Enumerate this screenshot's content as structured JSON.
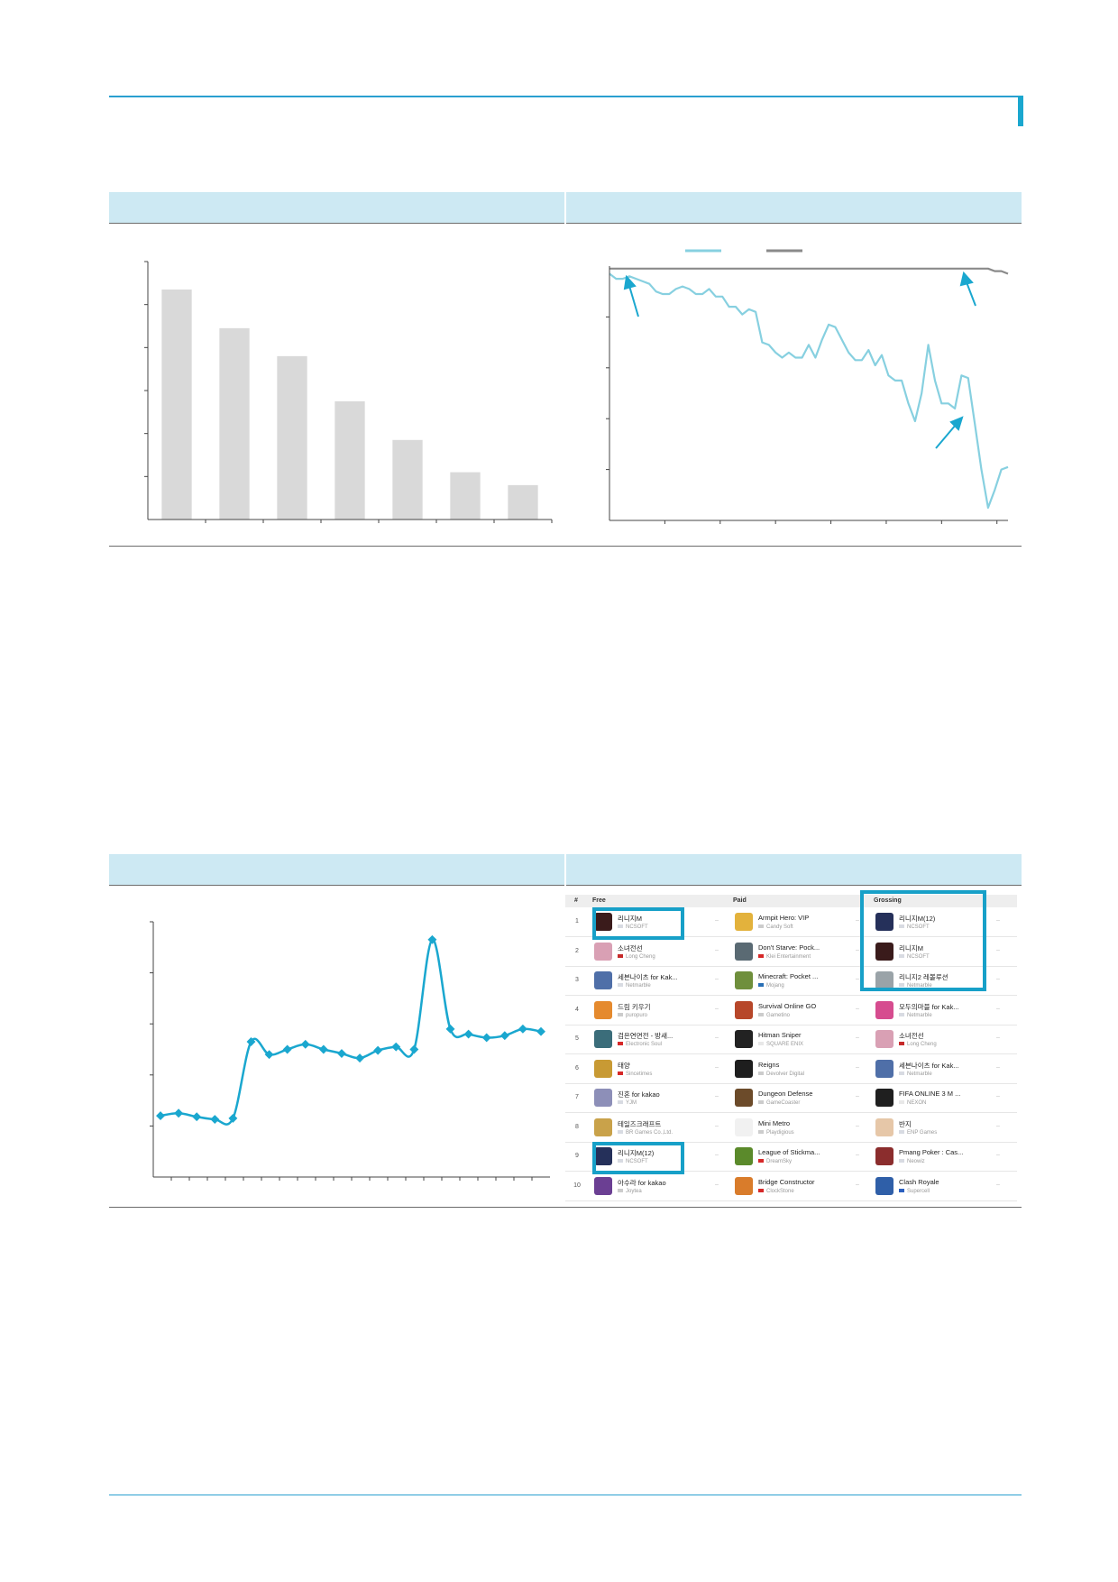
{
  "colors": {
    "accent": "#1aa7cf",
    "line": "#87d0e0",
    "grey_line": "#8a8a8a",
    "bar": "#d9d9d9",
    "header": "#cde9f3",
    "highlight": "#17a0c8"
  },
  "chart_data": [
    {
      "type": "bar",
      "categories": [
        "",
        "",
        "",
        "",
        "",
        "",
        ""
      ],
      "values": [
        5.35,
        4.45,
        3.8,
        2.75,
        1.85,
        1.1,
        0.8
      ],
      "ylim": [
        0,
        6
      ],
      "grid": false
    },
    {
      "type": "line",
      "ylim": [
        0,
        5
      ],
      "series": [
        {
          "color": "#87d0e0",
          "values": [
            4.85,
            4.75,
            4.75,
            4.8,
            4.75,
            4.7,
            4.65,
            4.5,
            4.45,
            4.45,
            4.55,
            4.6,
            4.55,
            4.45,
            4.45,
            4.55,
            4.4,
            4.4,
            4.2,
            4.2,
            4.05,
            4.15,
            4.1,
            3.5,
            3.45,
            3.3,
            3.2,
            3.3,
            3.2,
            3.2,
            3.45,
            3.2,
            3.55,
            3.85,
            3.8,
            3.55,
            3.3,
            3.15,
            3.15,
            3.35,
            3.05,
            3.25,
            2.85,
            2.75,
            2.75,
            2.3,
            1.95,
            2.5,
            3.45,
            2.75,
            2.3,
            2.3,
            2.2,
            2.85,
            2.8,
            1.9,
            1.0,
            0.25,
            0.6,
            1.0,
            1.05
          ]
        },
        {
          "color": "#8a8a8a",
          "values": [
            4.95,
            4.95,
            4.95,
            4.95,
            4.95,
            4.95,
            4.95,
            4.95,
            4.95,
            4.95,
            4.95,
            4.95,
            4.95,
            4.95,
            4.95,
            4.95,
            4.95,
            4.95,
            4.95,
            4.95,
            4.95,
            4.95,
            4.95,
            4.95,
            4.95,
            4.95,
            4.95,
            4.95,
            4.95,
            4.95,
            4.95,
            4.95,
            4.95,
            4.95,
            4.95,
            4.95,
            4.95,
            4.95,
            4.95,
            4.95,
            4.95,
            4.95,
            4.95,
            4.95,
            4.95,
            4.95,
            4.95,
            4.95,
            4.95,
            4.95,
            4.95,
            4.95,
            4.95,
            4.95,
            4.95,
            4.95,
            4.95,
            4.95,
            4.9,
            4.9,
            4.85
          ]
        }
      ],
      "grid": false,
      "annotations": [
        "arrow-start",
        "arrow-top-right",
        "arrow-drop"
      ]
    },
    {
      "type": "line",
      "ylim": [
        0,
        5
      ],
      "series": [
        {
          "color": "#1aa7cf",
          "values": [
            1.2,
            1.25,
            1.18,
            1.13,
            1.15,
            2.65,
            2.4,
            2.5,
            2.6,
            2.5,
            2.42,
            2.33,
            2.48,
            2.55,
            2.5,
            4.65,
            2.9,
            2.8,
            2.73,
            2.77,
            2.9,
            2.85
          ]
        }
      ],
      "grid": false
    }
  ],
  "ranking": {
    "headers": {
      "rank": "#",
      "free": "Free",
      "paid": "Paid",
      "grossing": "Grossing"
    },
    "rows": [
      {
        "rank": "1",
        "free": {
          "name": "리니지M",
          "dev": "NCSOFT",
          "flag": "kr",
          "icon": "#3a1b1b"
        },
        "paid": {
          "name": "Armpit Hero: VIP",
          "dev": "Candy Soft",
          "flag": "none",
          "icon": "#e3b23c"
        },
        "grossing": {
          "name": "리니지M(12)",
          "dev": "NCSOFT",
          "flag": "kr",
          "icon": "#25305a"
        }
      },
      {
        "rank": "2",
        "free": {
          "name": "소녀전선",
          "dev": "Long Cheng",
          "flag": "tw",
          "icon": "#d9a0b4"
        },
        "paid": {
          "name": "Don't Starve: Pock...",
          "dev": "Klei Entertainment",
          "flag": "ca",
          "icon": "#5a6a73"
        },
        "grossing": {
          "name": "리니지M",
          "dev": "NCSOFT",
          "flag": "kr",
          "icon": "#3a1b1b"
        }
      },
      {
        "rank": "3",
        "free": {
          "name": "세븐나이츠 for Kak...",
          "dev": "Netmarble",
          "flag": "kr",
          "icon": "#4f6fa8"
        },
        "paid": {
          "name": "Minecraft: Pocket ...",
          "dev": "Mojang",
          "flag": "se",
          "icon": "#6f8f3c"
        },
        "grossing": {
          "name": "리니지2 레볼루션",
          "dev": "Netmarble",
          "flag": "kr",
          "icon": "#9aa3a8"
        }
      },
      {
        "rank": "4",
        "free": {
          "name": "드림 키우기",
          "dev": "puropuro",
          "flag": "none",
          "icon": "#e58a2e"
        },
        "paid": {
          "name": "Survival Online GO",
          "dev": "Gametino",
          "flag": "none",
          "icon": "#b7472a"
        },
        "grossing": {
          "name": "모두의마블 for Kak...",
          "dev": "Netmarble",
          "flag": "kr",
          "icon": "#d64c8f"
        }
      },
      {
        "rank": "5",
        "free": {
          "name": "검은연면전 - 방새...",
          "dev": "Electronic Soul",
          "flag": "cn",
          "icon": "#3b6d7a"
        },
        "paid": {
          "name": "Hitman Sniper",
          "dev": "SQUARE ENIX",
          "flag": "jp",
          "icon": "#222222"
        },
        "grossing": {
          "name": "소녀전선",
          "dev": "Long Cheng",
          "flag": "tw",
          "icon": "#d9a0b4"
        }
      },
      {
        "rank": "6",
        "free": {
          "name": "태양",
          "dev": "Sincetimes",
          "flag": "cn",
          "icon": "#c89a34"
        },
        "paid": {
          "name": "Reigns",
          "dev": "Devolver Digital",
          "flag": "none",
          "icon": "#1e1e1e"
        },
        "grossing": {
          "name": "세븐나이츠 for Kak...",
          "dev": "Netmarble",
          "flag": "kr",
          "icon": "#4f6fa8"
        }
      },
      {
        "rank": "7",
        "free": {
          "name": "진혼 for kakao",
          "dev": "YJM",
          "flag": "kr",
          "icon": "#8d8fb8"
        },
        "paid": {
          "name": "Dungeon Defense",
          "dev": "GameCoaster",
          "flag": "none",
          "icon": "#6c4b2a"
        },
        "grossing": {
          "name": "FIFA ONLINE 3 M ...",
          "dev": "NEXON",
          "flag": "jp",
          "icon": "#1f1f1f"
        }
      },
      {
        "rank": "8",
        "free": {
          "name": "테일즈크래프트",
          "dev": "BR Games Co.,Ltd.",
          "flag": "kr",
          "icon": "#c9a24a"
        },
        "paid": {
          "name": "Mini Metro",
          "dev": "Playdigious",
          "flag": "none",
          "icon": "#f1f1f1"
        },
        "grossing": {
          "name": "반지",
          "dev": "ENP Games",
          "flag": "kr",
          "icon": "#e6c7a8"
        }
      },
      {
        "rank": "9",
        "free": {
          "name": "리니지M(12)",
          "dev": "NCSOFT",
          "flag": "kr",
          "icon": "#25305a"
        },
        "paid": {
          "name": "League of Stickma...",
          "dev": "DreamSky",
          "flag": "cn",
          "icon": "#5b8a2b"
        },
        "grossing": {
          "name": "Pmang Poker : Cas...",
          "dev": "Neowiz",
          "flag": "kr",
          "icon": "#8b2d2d"
        }
      },
      {
        "rank": "10",
        "free": {
          "name": "아수라 for kakao",
          "dev": "Joytea",
          "flag": "none",
          "icon": "#6b3f93"
        },
        "paid": {
          "name": "Bridge Constructor",
          "dev": "ClockStone",
          "flag": "at",
          "icon": "#d97c2b"
        },
        "grossing": {
          "name": "Clash Royale",
          "dev": "Supercell",
          "flag": "fi",
          "icon": "#2f5fa8"
        }
      }
    ]
  }
}
